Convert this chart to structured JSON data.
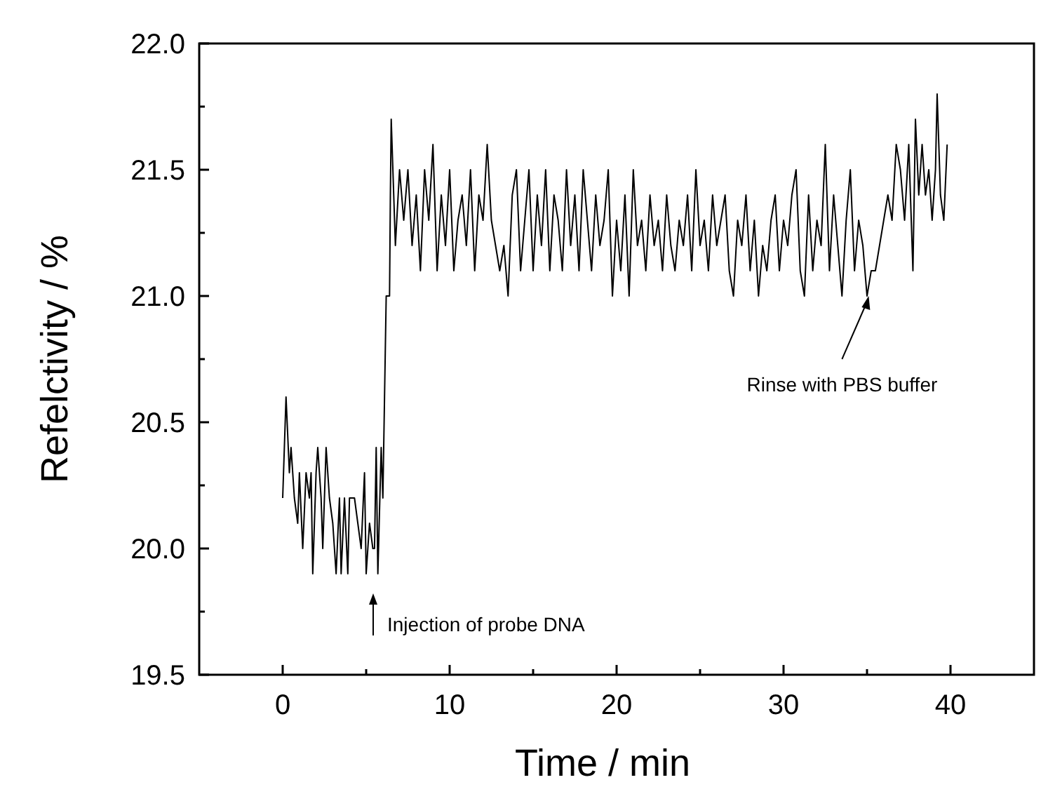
{
  "chart_data": {
    "type": "line",
    "xlabel": "Time / min",
    "ylabel": "Refelctivity / %",
    "xlim": [
      -5,
      45
    ],
    "xticks": [
      0,
      {
        "value": 5,
        "label": null
      },
      10,
      {
        "value": 15,
        "label": null
      },
      20,
      {
        "value": 25,
        "label": null
      },
      30,
      {
        "value": 35,
        "label": null
      },
      40
    ],
    "ylim": [
      19.5,
      22.0
    ],
    "yticks": [
      "19.5",
      {
        "value": 19.75,
        "label": null
      },
      {
        "value": 20.0,
        "label": "20.0"
      },
      {
        "value": 20.25,
        "label": null
      },
      {
        "value": 20.5,
        "label": "20.5"
      },
      {
        "value": 20.75,
        "label": null
      },
      {
        "value": 21.0,
        "label": "21.0"
      },
      {
        "value": 21.25,
        "label": null
      },
      {
        "value": 21.5,
        "label": "21.5"
      },
      {
        "value": 21.75,
        "label": null
      },
      {
        "value": 22.0,
        "label": "22.0"
      }
    ],
    "grid": false,
    "marker": "none",
    "line_style": "solid",
    "series": [
      {
        "color": "#000000",
        "x": [
          0,
          0.05,
          0.2,
          0.4,
          0.5,
          0.6,
          0.7,
          0.9,
          1.0,
          1.2,
          1.4,
          1.6,
          1.7,
          1.8,
          2.0,
          2.1,
          2.3,
          2.4,
          2.6,
          2.8,
          3.0,
          3.2,
          3.4,
          3.5,
          3.7,
          3.9,
          4.0,
          4.3,
          4.5,
          4.7,
          4.9,
          5.0,
          5.2,
          5.4,
          5.5,
          5.6,
          5.7,
          5.9,
          6.0,
          6.1,
          6.2,
          6.4,
          6.45,
          6.5,
          6.75,
          7,
          7.25,
          7.5,
          7.75,
          8,
          8.25,
          8.5,
          8.75,
          9,
          9.25,
          9.5,
          9.75,
          10,
          10.25,
          10.5,
          10.75,
          11,
          11.25,
          11.5,
          11.75,
          12,
          12.25,
          12.5,
          12.75,
          13,
          13.25,
          13.5,
          13.75,
          14,
          14.25,
          14.5,
          14.75,
          15,
          15.25,
          15.5,
          15.75,
          16,
          16.25,
          16.5,
          16.75,
          17,
          17.25,
          17.5,
          17.75,
          18,
          18.25,
          18.5,
          18.75,
          19,
          19.25,
          19.5,
          19.75,
          20,
          20.25,
          20.5,
          20.75,
          21,
          21.25,
          21.5,
          21.75,
          22,
          22.25,
          22.5,
          22.75,
          23,
          23.25,
          23.5,
          23.75,
          24,
          24.25,
          24.5,
          24.75,
          25,
          25.25,
          25.5,
          25.75,
          26,
          26.25,
          26.5,
          26.75,
          27,
          27.25,
          27.5,
          27.75,
          28,
          28.25,
          28.5,
          28.75,
          29,
          29.25,
          29.5,
          29.75,
          30,
          30.25,
          30.5,
          30.75,
          31,
          31.25,
          31.5,
          31.75,
          32,
          32.25,
          32.5,
          32.75,
          33,
          33.25,
          33.5,
          33.75,
          34,
          34.25,
          34.5,
          34.75,
          35,
          35.25,
          35.5,
          35.75,
          36,
          36.25,
          36.5,
          36.75,
          37,
          37.25,
          37.5,
          37.75,
          37.9,
          38.1,
          38.3,
          38.5,
          38.7,
          38.9,
          39.1,
          39.2,
          39.4,
          39.6,
          39.8
        ],
        "values": [
          20.2,
          20.3,
          20.6,
          20.3,
          20.4,
          20.3,
          20.2,
          20.1,
          20.3,
          20.0,
          20.3,
          20.2,
          20.3,
          19.9,
          20.3,
          20.4,
          20.2,
          20.0,
          20.4,
          20.2,
          20.1,
          19.9,
          20.2,
          19.9,
          20.2,
          19.9,
          20.2,
          20.2,
          20.1,
          20.0,
          20.3,
          19.9,
          20.1,
          20.0,
          20.0,
          20.4,
          19.9,
          20.4,
          20.2,
          20.6,
          21.0,
          21.0,
          21.4,
          21.7,
          21.2,
          21.5,
          21.3,
          21.5,
          21.2,
          21.4,
          21.1,
          21.5,
          21.3,
          21.6,
          21.1,
          21.4,
          21.2,
          21.5,
          21.1,
          21.3,
          21.4,
          21.2,
          21.5,
          21.1,
          21.4,
          21.3,
          21.6,
          21.3,
          21.2,
          21.1,
          21.2,
          21.0,
          21.4,
          21.5,
          21.1,
          21.3,
          21.5,
          21.1,
          21.4,
          21.2,
          21.5,
          21.1,
          21.4,
          21.3,
          21.1,
          21.5,
          21.2,
          21.4,
          21.1,
          21.5,
          21.3,
          21.1,
          21.4,
          21.2,
          21.3,
          21.5,
          21.0,
          21.3,
          21.1,
          21.4,
          21.0,
          21.5,
          21.2,
          21.3,
          21.1,
          21.4,
          21.2,
          21.3,
          21.1,
          21.4,
          21.2,
          21.1,
          21.3,
          21.2,
          21.4,
          21.1,
          21.5,
          21.2,
          21.3,
          21.1,
          21.4,
          21.2,
          21.3,
          21.4,
          21.1,
          21.0,
          21.3,
          21.2,
          21.4,
          21.1,
          21.3,
          21.0,
          21.2,
          21.1,
          21.3,
          21.4,
          21.1,
          21.3,
          21.2,
          21.4,
          21.5,
          21.1,
          21.0,
          21.4,
          21.1,
          21.3,
          21.2,
          21.6,
          21.1,
          21.4,
          21.2,
          21.0,
          21.3,
          21.5,
          21.1,
          21.3,
          21.2,
          21.0,
          21.1,
          21.1,
          21.2,
          21.3,
          21.4,
          21.3,
          21.6,
          21.5,
          21.3,
          21.6,
          21.1,
          21.7,
          21.4,
          21.6,
          21.4,
          21.5,
          21.3,
          21.5,
          21.8,
          21.4,
          21.3,
          21.6
        ]
      }
    ],
    "annotations": [
      "Injection of probe DNA",
      {
        "text": "Rinse with PBS buffer",
        "x": 35.1,
        "y": 21.0
      }
    ]
  }
}
